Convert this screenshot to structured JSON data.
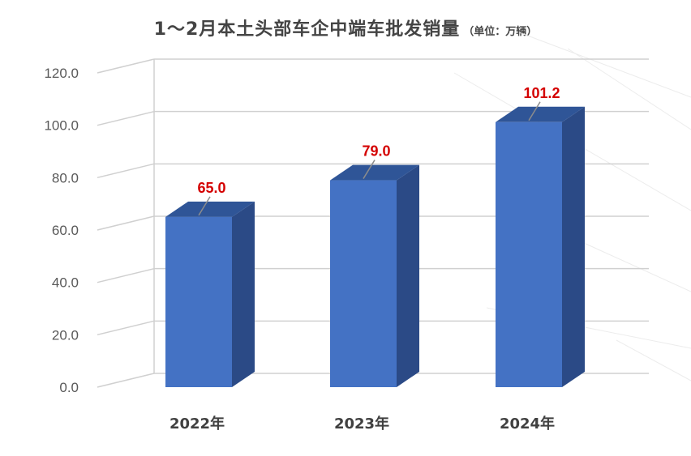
{
  "title": "1～2月本土头部车企中端车批发销量",
  "unit_note": "（单位：万辆）",
  "colors": {
    "bar_front": "#4472C4",
    "bar_side": "#2B4A86",
    "bar_top": "#2F5597",
    "value_label": "#D40000",
    "axis_text": "#595959",
    "gridline": "#D0D0D0"
  },
  "chart_data": {
    "type": "bar",
    "categories": [
      "2022年",
      "2023年",
      "2024年"
    ],
    "values": [
      65.0,
      79.0,
      101.2
    ],
    "data_labels": [
      "65.0",
      "79.0",
      "101.2"
    ],
    "ylim": [
      0,
      120
    ],
    "y_ticks": [
      "0.0",
      "20.0",
      "40.0",
      "60.0",
      "80.0",
      "100.0",
      "120.0"
    ],
    "grid": true,
    "style": "3d-column"
  }
}
